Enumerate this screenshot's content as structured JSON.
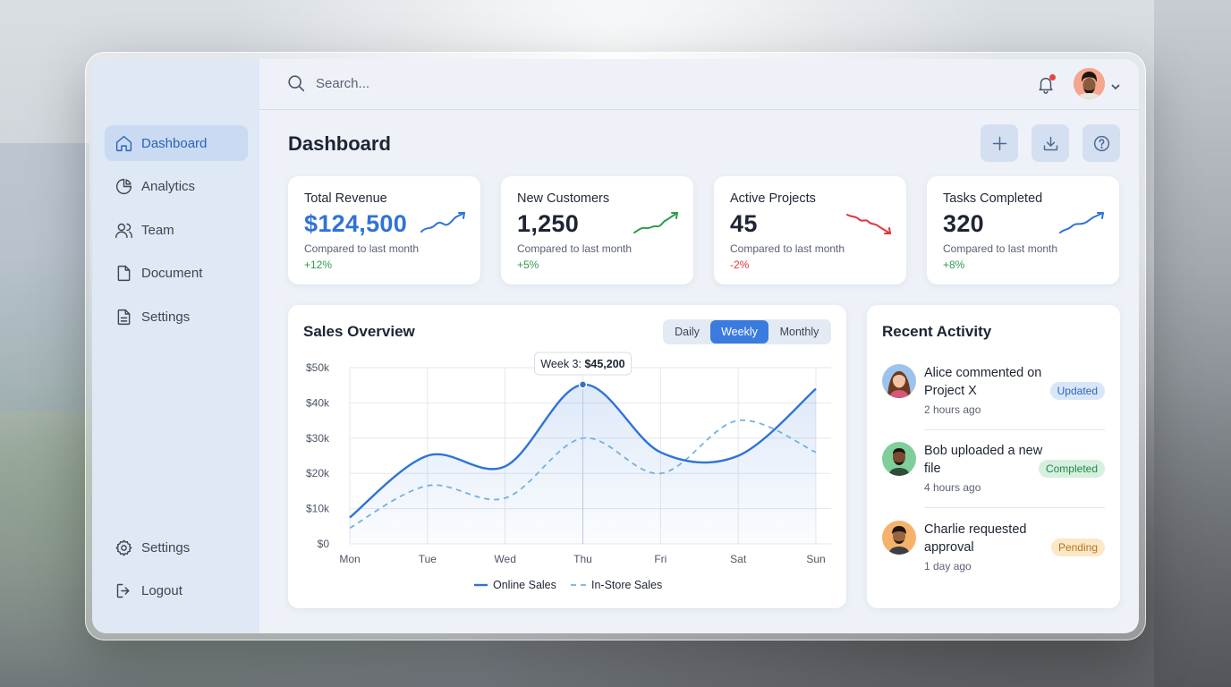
{
  "search": {
    "placeholder": "Search..."
  },
  "sidebar": {
    "items": [
      {
        "label": "Dashboard",
        "icon": "home-icon",
        "active": true
      },
      {
        "label": "Analytics",
        "icon": "pie-chart-icon"
      },
      {
        "label": "Team",
        "icon": "users-icon"
      },
      {
        "label": "Document",
        "icon": "file-icon"
      },
      {
        "label": "Settings",
        "icon": "file-text-icon"
      }
    ],
    "bottom": [
      {
        "label": "Settings",
        "icon": "gear-icon"
      },
      {
        "label": "Logout",
        "icon": "logout-icon"
      }
    ]
  },
  "header": {
    "title": "Dashboard",
    "actions": [
      "plus-icon",
      "download-icon",
      "help-icon"
    ],
    "notification_dot": true
  },
  "stats": [
    {
      "label": "Total Revenue",
      "value": "$124,500",
      "sub": "Compared to last month",
      "delta": "+12%",
      "trend": "up",
      "color": "#2f73d6",
      "highlight": true
    },
    {
      "label": "New Customers",
      "value": "1,250",
      "sub": "Compared to last month",
      "delta": "+5%",
      "trend": "up",
      "color": "#2e9c4f"
    },
    {
      "label": "Active Projects",
      "value": "45",
      "sub": "Compared to last month",
      "delta": "-2%",
      "trend": "down",
      "color": "#e0353a"
    },
    {
      "label": "Tasks Completed",
      "value": "320",
      "sub": "Compared to last month",
      "delta": "+8%",
      "trend": "up",
      "color": "#2f73d6"
    }
  ],
  "sales": {
    "title": "Sales Overview",
    "tabs": [
      {
        "label": "Daily",
        "active": false
      },
      {
        "label": "Weekly",
        "active": true
      },
      {
        "label": "Monthly",
        "active": false
      }
    ],
    "tooltip": {
      "label": "Week 3: ",
      "value": "$45,200"
    }
  },
  "chart_data": {
    "type": "line",
    "categories": [
      "Mon",
      "Tue",
      "Wed",
      "Thu",
      "Fri",
      "Sat",
      "Sun"
    ],
    "series": [
      {
        "name": "Online Sales",
        "values": [
          7500,
          25000,
          22000,
          45200,
          26000,
          25000,
          44000
        ],
        "style": "solid",
        "color": "#2f73d6"
      },
      {
        "name": "In-Store Sales",
        "values": [
          4500,
          16500,
          13000,
          30000,
          20000,
          35000,
          26000
        ],
        "style": "dashed",
        "color": "#6fb3e0"
      }
    ],
    "ylim": [
      0,
      50000
    ],
    "yticks": [
      "$0",
      "$10k",
      "$20k",
      "$30k",
      "$40k",
      "$50k"
    ],
    "grid": true,
    "legend": "bottom"
  },
  "activity": {
    "title": "Recent Activity",
    "items": [
      {
        "text": "Alice commented on Project X",
        "time": "2 hours ago",
        "badge": "Updated",
        "badge_style": "blue"
      },
      {
        "text": "Bob uploaded a new file",
        "time": "4 hours ago",
        "badge": "Completed",
        "badge_style": "green"
      },
      {
        "text": "Charlie requested approval",
        "time": "1 day ago",
        "badge": "Pending",
        "badge_style": "amber"
      }
    ]
  }
}
